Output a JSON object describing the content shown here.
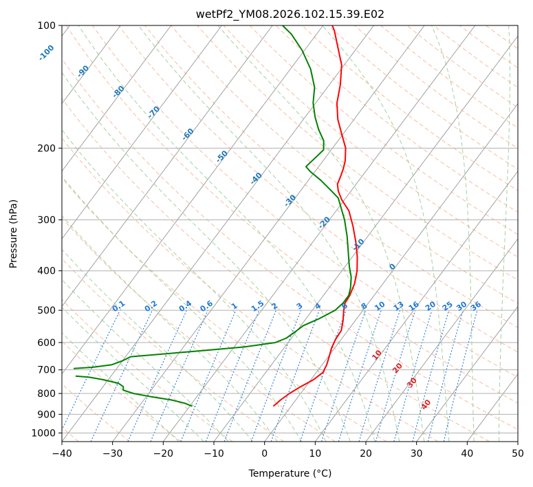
{
  "chart_data": {
    "type": "line",
    "title": "wetPf2_YM08.2026.102.15.39.E02",
    "xlabel": "Temperature (°C)",
    "ylabel": "Pressure (hPa)",
    "xlim": [
      -40,
      50
    ],
    "ylim": [
      1050,
      100
    ],
    "y_scale": "log",
    "x_ticks": [
      -40,
      -30,
      -20,
      -10,
      0,
      10,
      20,
      30,
      40,
      50
    ],
    "y_ticks": [
      100,
      200,
      300,
      400,
      500,
      600,
      700,
      800,
      900,
      1000
    ],
    "grid": true,
    "skew_isotherms": true,
    "colors": {
      "temperature": "#ff0000",
      "dewpoint": "#008000",
      "isotherm": "#a0a0a0",
      "dry_adiabat": "#f4a582",
      "moist_adiabat": "#8fc98f",
      "mixing_ratio": "#1f77d4",
      "iso_label_blue": "#1f77b4",
      "theta_label_red": "#d62728"
    },
    "series": [
      {
        "role": "temperature",
        "points": [
          {
            "p": 860,
            "t": -3.5
          },
          {
            "p": 830,
            "t": -3.0
          },
          {
            "p": 800,
            "t": -2.2
          },
          {
            "p": 770,
            "t": -1.0
          },
          {
            "p": 740,
            "t": 0.5
          },
          {
            "p": 710,
            "t": 1.3
          },
          {
            "p": 680,
            "t": 0.9
          },
          {
            "p": 650,
            "t": 0.2
          },
          {
            "p": 620,
            "t": -0.6
          },
          {
            "p": 590,
            "t": -1.1
          },
          {
            "p": 560,
            "t": -1.3
          },
          {
            "p": 530,
            "t": -2.4
          },
          {
            "p": 500,
            "t": -3.8
          },
          {
            "p": 480,
            "t": -4.6
          },
          {
            "p": 460,
            "t": -4.8
          },
          {
            "p": 430,
            "t": -5.6
          },
          {
            "p": 400,
            "t": -7.0
          },
          {
            "p": 370,
            "t": -9.0
          },
          {
            "p": 340,
            "t": -11.5
          },
          {
            "p": 310,
            "t": -14.5
          },
          {
            "p": 285,
            "t": -17.5
          },
          {
            "p": 268,
            "t": -20.5
          },
          {
            "p": 255,
            "t": -22.5
          },
          {
            "p": 245,
            "t": -23.7
          },
          {
            "p": 235,
            "t": -24.2
          },
          {
            "p": 225,
            "t": -24.8
          },
          {
            "p": 215,
            "t": -25.6
          },
          {
            "p": 200,
            "t": -27.4
          },
          {
            "p": 185,
            "t": -30.2
          },
          {
            "p": 170,
            "t": -33.2
          },
          {
            "p": 155,
            "t": -35.8
          },
          {
            "p": 140,
            "t": -37.8
          },
          {
            "p": 125,
            "t": -40.5
          },
          {
            "p": 112,
            "t": -44.2
          },
          {
            "p": 103,
            "t": -47.0
          },
          {
            "p": 100,
            "t": -48.2
          }
        ]
      },
      {
        "role": "dewpoint",
        "points": [
          {
            "p": 860,
            "t": -19.5
          },
          {
            "p": 845,
            "t": -21.5
          },
          {
            "p": 830,
            "t": -24.5
          },
          {
            "p": 815,
            "t": -29.0
          },
          {
            "p": 800,
            "t": -33.0
          },
          {
            "p": 785,
            "t": -35.5
          },
          {
            "p": 770,
            "t": -36.0
          },
          {
            "p": 755,
            "t": -37.5
          },
          {
            "p": 740,
            "t": -41.0
          },
          {
            "p": 730,
            "t": -44.0
          },
          {
            "p": 725,
            "t": -47.0
          }
        ]
      },
      {
        "role": "dewpoint",
        "points": [
          {
            "p": 695,
            "t": -48.5
          },
          {
            "p": 690,
            "t": -45.0
          },
          {
            "p": 680,
            "t": -41.5
          },
          {
            "p": 665,
            "t": -40.0
          },
          {
            "p": 650,
            "t": -39.0
          },
          {
            "p": 630,
            "t": -27.0
          },
          {
            "p": 615,
            "t": -18.0
          },
          {
            "p": 600,
            "t": -12.5
          },
          {
            "p": 585,
            "t": -11.0
          },
          {
            "p": 565,
            "t": -10.2
          },
          {
            "p": 545,
            "t": -9.5
          },
          {
            "p": 525,
            "t": -7.5
          },
          {
            "p": 500,
            "t": -5.5
          },
          {
            "p": 480,
            "t": -5.0
          },
          {
            "p": 460,
            "t": -5.0
          },
          {
            "p": 440,
            "t": -5.8
          },
          {
            "p": 415,
            "t": -7.2
          },
          {
            "p": 390,
            "t": -9.2
          },
          {
            "p": 360,
            "t": -11.5
          },
          {
            "p": 330,
            "t": -14.0
          },
          {
            "p": 300,
            "t": -17.0
          },
          {
            "p": 280,
            "t": -19.5
          },
          {
            "p": 265,
            "t": -21.5
          },
          {
            "p": 255,
            "t": -23.8
          },
          {
            "p": 240,
            "t": -27.5
          },
          {
            "p": 228,
            "t": -31.0
          },
          {
            "p": 222,
            "t": -32.5
          },
          {
            "p": 212,
            "t": -32.0
          },
          {
            "p": 202,
            "t": -31.5
          },
          {
            "p": 192,
            "t": -32.8
          },
          {
            "p": 180,
            "t": -35.5
          },
          {
            "p": 168,
            "t": -38.0
          },
          {
            "p": 155,
            "t": -40.5
          },
          {
            "p": 142,
            "t": -42.5
          },
          {
            "p": 128,
            "t": -46.0
          },
          {
            "p": 115,
            "t": -50.5
          },
          {
            "p": 105,
            "t": -55.0
          },
          {
            "p": 100,
            "t": -58.0
          }
        ]
      }
    ],
    "isotherm_labels": [
      {
        "text": "-100",
        "t": -100,
        "p": 118
      },
      {
        "text": "-90",
        "t": -90,
        "p": 131
      },
      {
        "text": "-80",
        "t": -80,
        "p": 147
      },
      {
        "text": "-70",
        "t": -70,
        "p": 165
      },
      {
        "text": "-60",
        "t": -60,
        "p": 187
      },
      {
        "text": "-50",
        "t": -50,
        "p": 212
      },
      {
        "text": "-40",
        "t": -40,
        "p": 240
      },
      {
        "text": "-30",
        "t": -30,
        "p": 272
      },
      {
        "text": "-20",
        "t": -20,
        "p": 308
      },
      {
        "text": "-10",
        "t": -10,
        "p": 349
      },
      {
        "text": "0",
        "t": 0,
        "p": 395
      }
    ],
    "mixing_ratio_labels": [
      "0.1",
      "0.2",
      "0.4",
      "0.6",
      "1",
      "1.5",
      "2",
      "3",
      "4",
      "6",
      "8",
      "10",
      "13",
      "16",
      "20",
      "25",
      "30",
      "36"
    ],
    "mixing_ratio_values": [
      0.1,
      0.2,
      0.4,
      0.6,
      1,
      1.5,
      2,
      3,
      4,
      6,
      8,
      10,
      13,
      16,
      20,
      25,
      30,
      36
    ],
    "theta_e_labels": [
      {
        "text": "10",
        "t": 30,
        "p": 650
      },
      {
        "text": "20",
        "t": 36,
        "p": 700
      },
      {
        "text": "30",
        "t": 41,
        "p": 760
      },
      {
        "text": "40",
        "t": 47,
        "p": 860
      }
    ]
  }
}
